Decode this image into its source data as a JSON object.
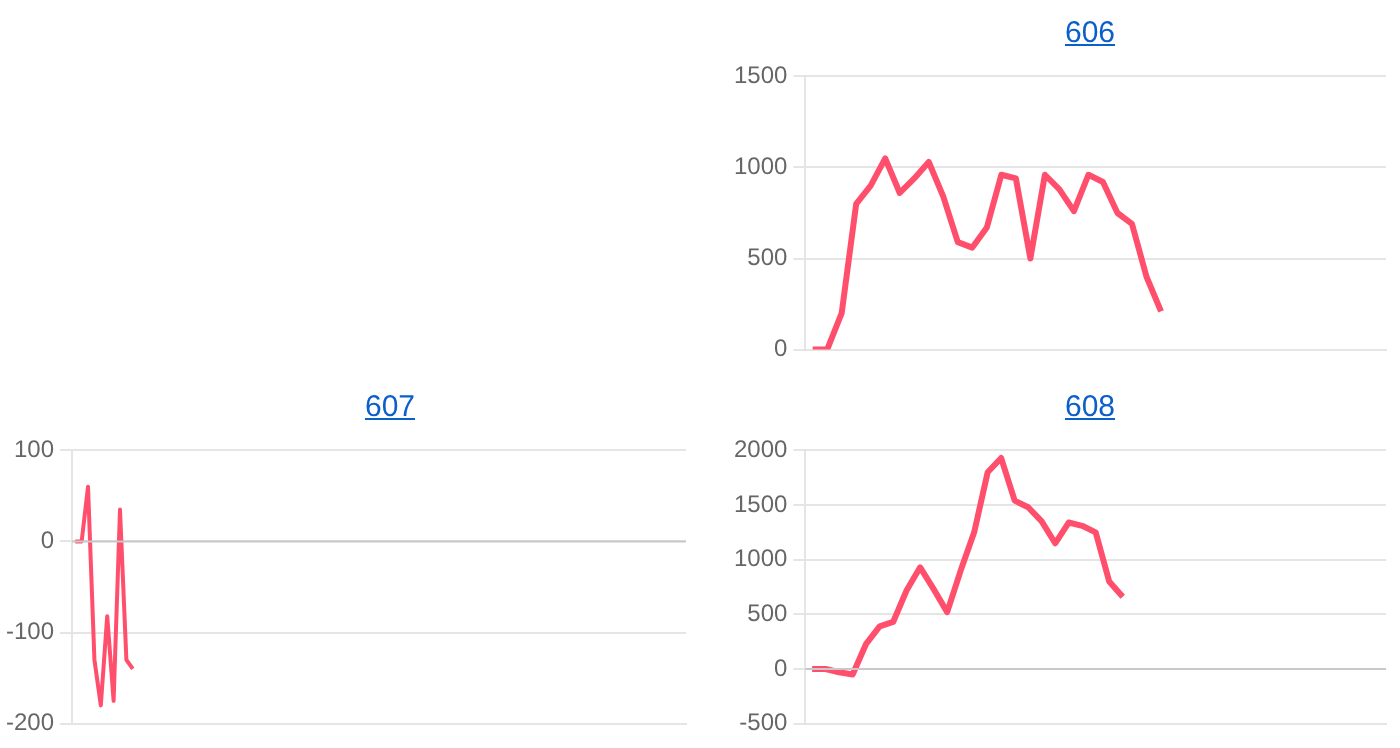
{
  "chart_data": [
    {
      "type": "line",
      "title": "606",
      "categories": [
        null,
        null,
        null,
        null,
        null,
        null,
        null,
        null,
        null,
        null,
        null,
        null,
        null,
        null,
        null,
        null,
        null,
        null,
        null,
        null,
        null,
        null,
        null,
        null,
        null,
        null,
        null,
        null,
        null,
        null,
        null,
        null,
        null,
        null,
        null,
        null,
        null,
        null,
        null,
        null
      ],
      "series": [
        {
          "color": "#ff4f6d",
          "values": [
            0,
            0,
            200,
            800,
            900,
            1050,
            860,
            940,
            1030,
            840,
            590,
            560,
            670,
            960,
            940,
            500,
            960,
            880,
            760,
            960,
            920,
            750,
            690,
            400,
            210,
            null,
            null,
            null,
            null,
            null,
            null,
            null,
            null,
            null,
            null,
            null,
            null,
            null,
            null,
            null
          ]
        }
      ],
      "ylim": [
        0,
        1500
      ],
      "yticks": [
        0,
        500,
        1000,
        1500
      ],
      "grid": "y",
      "legend": false,
      "marker": "none",
      "tick_labels": "y"
    },
    {
      "type": "line",
      "title": "607",
      "categories": [
        null,
        null,
        null,
        null,
        null,
        null,
        null,
        null,
        null,
        null,
        null,
        null,
        null,
        null,
        null,
        null,
        null,
        null,
        null,
        null,
        null,
        null,
        null,
        null,
        null,
        null,
        null,
        null,
        null,
        null,
        null,
        null,
        null,
        null,
        null,
        null,
        null,
        null,
        null,
        null,
        null,
        null,
        null,
        null,
        null,
        null,
        null,
        null,
        null,
        null,
        null,
        null,
        null,
        null,
        null,
        null,
        null,
        null,
        null,
        null,
        null,
        null,
        null,
        null,
        null,
        null,
        null,
        null,
        null,
        null,
        null,
        null,
        null,
        null,
        null,
        null,
        null,
        null,
        null,
        null,
        null,
        null,
        null,
        null,
        null,
        null,
        null,
        null,
        null,
        null,
        null,
        null,
        null,
        null,
        null,
        null
      ],
      "series": [
        {
          "color": "#ff4f6d",
          "values": [
            0,
            0,
            60,
            -130,
            -180,
            -82,
            -175,
            35,
            -130,
            -140,
            null,
            null,
            null,
            null,
            null,
            null,
            null,
            null,
            null,
            null,
            null,
            null,
            null,
            null,
            null,
            null,
            null,
            null,
            null,
            null,
            null,
            null,
            null,
            null,
            null,
            null,
            null,
            null,
            null,
            null,
            null,
            null,
            null,
            null,
            null,
            null,
            null,
            null,
            null,
            null,
            null,
            null,
            null,
            null,
            null,
            null,
            null,
            null,
            null,
            null,
            null,
            null,
            null,
            null,
            null,
            null,
            null,
            null,
            null,
            null,
            null,
            null,
            null,
            null,
            null,
            null,
            null,
            null,
            null,
            null,
            null,
            null,
            null,
            null,
            null,
            null,
            null,
            null,
            null,
            null,
            null,
            null,
            null,
            null,
            null,
            null
          ]
        }
      ],
      "ylim": [
        -200,
        100
      ],
      "yticks": [
        -200,
        -100,
        0,
        100
      ],
      "ref_lines": [
        {
          "axis": "y",
          "value": 0,
          "color": "#c8c8c8"
        }
      ],
      "grid": "y",
      "legend": false,
      "marker": "none",
      "tick_labels": "y"
    },
    {
      "type": "line",
      "title": "608",
      "categories": [
        null,
        null,
        null,
        null,
        null,
        null,
        null,
        null,
        null,
        null,
        null,
        null,
        null,
        null,
        null,
        null,
        null,
        null,
        null,
        null,
        null,
        null,
        null,
        null,
        null,
        null,
        null,
        null,
        null,
        null,
        null,
        null,
        null,
        null,
        null,
        null,
        null,
        null,
        null,
        null,
        null,
        null,
        null
      ],
      "series": [
        {
          "color": "#ff4f6d",
          "values": [
            0,
            0,
            -30,
            -50,
            230,
            390,
            430,
            720,
            930,
            730,
            520,
            900,
            1250,
            1800,
            1930,
            1540,
            1480,
            1350,
            1150,
            1340,
            1310,
            1250,
            800,
            660,
            null,
            null,
            null,
            null,
            null,
            null,
            null,
            null,
            null,
            null,
            null,
            null,
            null,
            null,
            null,
            null,
            null,
            null,
            null
          ]
        }
      ],
      "ref_lines": [
        {
          "axis": "y",
          "value": 0,
          "color": "#c8c8c8"
        }
      ],
      "ylim": [
        -500,
        2000
      ],
      "yticks": [
        -500,
        0,
        500,
        1000,
        1500,
        2000
      ],
      "grid": "y",
      "legend": false,
      "marker": "none",
      "tick_labels": "y"
    }
  ]
}
